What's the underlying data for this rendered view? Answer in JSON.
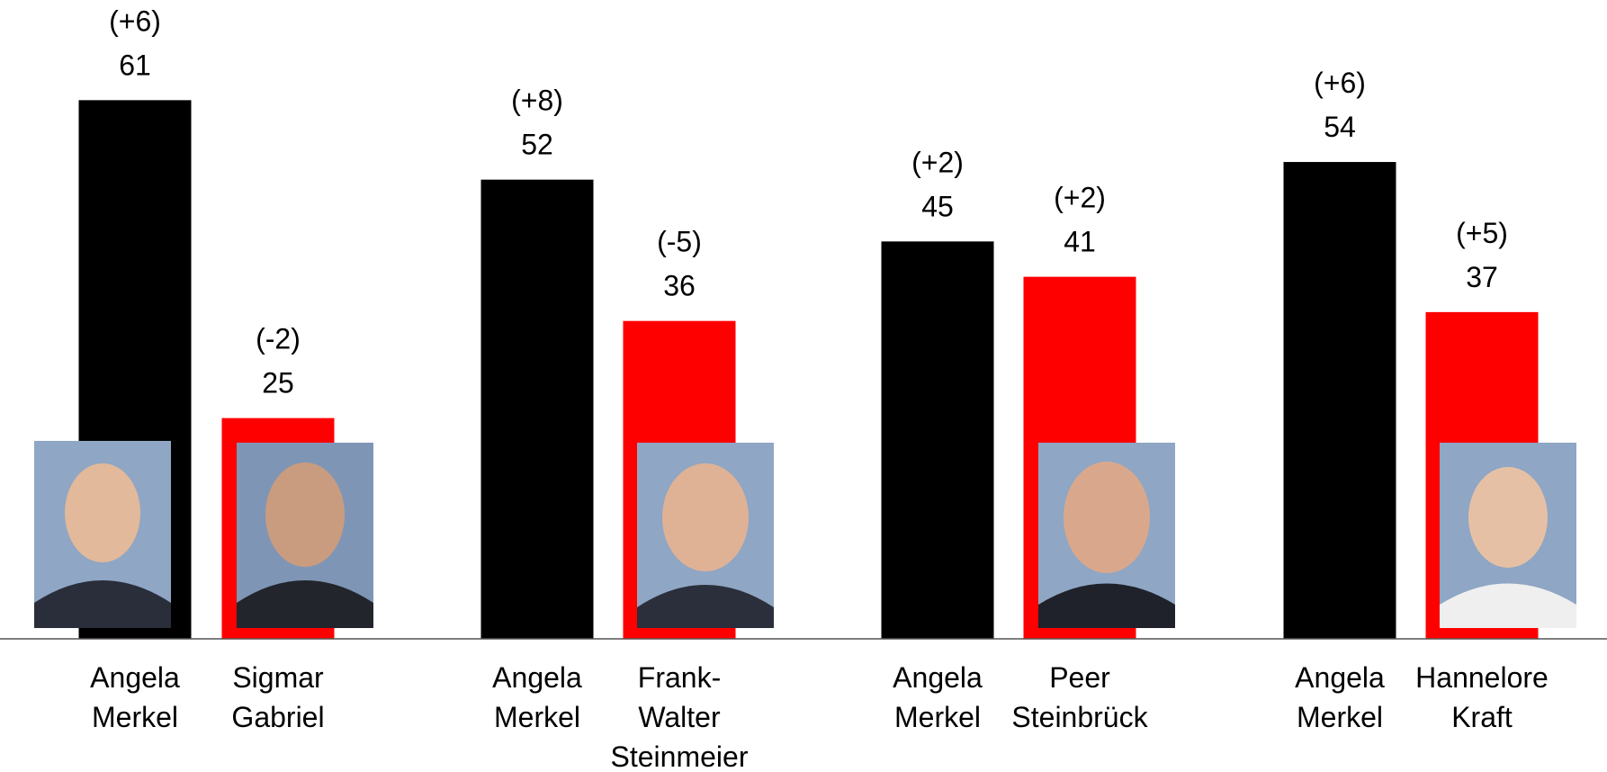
{
  "chart_data": {
    "type": "bar",
    "categories": [
      [
        "Angela",
        "Merkel"
      ],
      [
        "Sigmar",
        "Gabriel"
      ],
      [
        "Angela",
        "Merkel"
      ],
      [
        "Frank-",
        "Walter",
        "Steinmeier"
      ],
      [
        "Angela",
        "Merkel"
      ],
      [
        "Peer",
        "Steinbrück"
      ],
      [
        "Angela",
        "Merkel"
      ],
      [
        "Hannelore",
        "Kraft"
      ]
    ],
    "values": [
      61,
      25,
      52,
      36,
      45,
      41,
      54,
      37
    ],
    "annotations": [
      "(+6)",
      "(-2)",
      "(+8)",
      "(-5)",
      "(+2)",
      "(+2)",
      "(+6)",
      "(+5)"
    ],
    "colors": [
      "#000000",
      "#ff0000",
      "#000000",
      "#ff0000",
      "#000000",
      "#ff0000",
      "#000000",
      "#ff0000"
    ],
    "ylim": [
      0,
      70
    ]
  }
}
